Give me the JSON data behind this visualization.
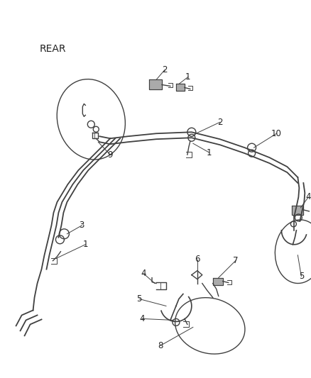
{
  "title": "REAR",
  "background_color": "#ffffff",
  "line_color": "#404040",
  "text_color": "#222222",
  "title_fontsize": 10,
  "label_fontsize": 8.5,
  "figsize": [
    4.39,
    5.33
  ],
  "dpi": 100
}
